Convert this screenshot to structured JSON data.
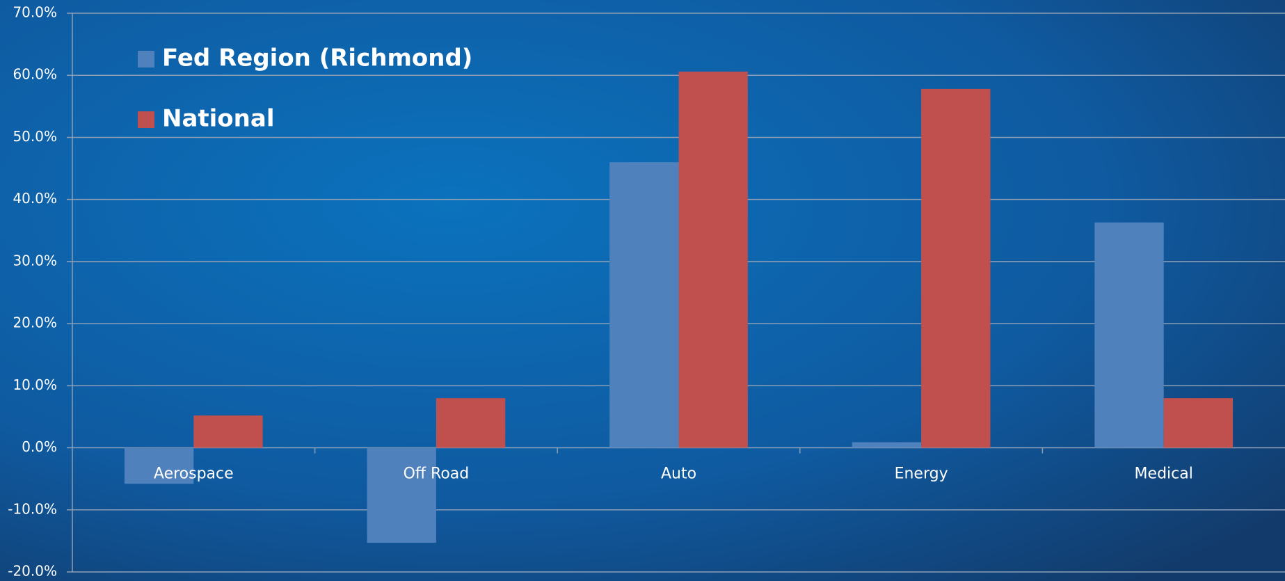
{
  "chart_data": {
    "type": "bar",
    "categories": [
      "Aerospace",
      "Off Road",
      "Auto",
      "Energy",
      "Medical"
    ],
    "series": [
      {
        "name": "Fed Region (Richmond)",
        "color": "#4f81bd",
        "values": [
          -5.8,
          -15.3,
          46.0,
          0.9,
          36.3
        ]
      },
      {
        "name": "National",
        "color": "#c0504d",
        "values": [
          5.2,
          8.0,
          60.6,
          57.8,
          8.0
        ]
      }
    ],
    "ylim": [
      -20,
      70
    ],
    "yticks": [
      {
        "value": -20,
        "label": "-20.0%"
      },
      {
        "value": -10,
        "label": "-10.0%"
      },
      {
        "value": 0,
        "label": "0.0%"
      },
      {
        "value": 10,
        "label": "10.0%"
      },
      {
        "value": 20,
        "label": "20.0%"
      },
      {
        "value": 30,
        "label": "30.0%"
      },
      {
        "value": 40,
        "label": "40.0%"
      },
      {
        "value": 50,
        "label": "50.0%"
      },
      {
        "value": 60,
        "label": "60.0%"
      },
      {
        "value": 70,
        "label": "70.0%"
      }
    ],
    "grid": true,
    "legend": "top-left"
  }
}
